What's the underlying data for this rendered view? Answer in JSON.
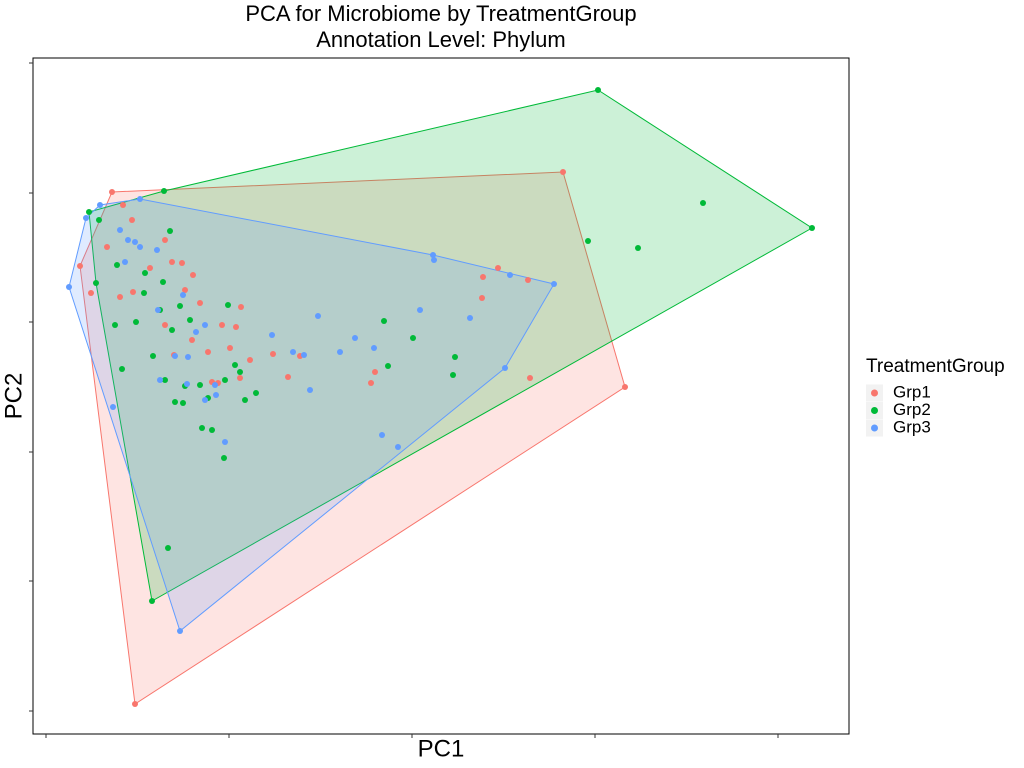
{
  "chart_data": {
    "type": "scatter",
    "title": "PCA for Microbiome by TreatmentGroup",
    "subtitle": "Annotation Level: Phylum",
    "x_label": "PC1",
    "y_label": "PC2",
    "legend_title": "TreatmentGroup",
    "xlim": [
      -13,
      803
    ],
    "xticks": [
      0,
      183,
      366,
      549,
      732
    ],
    "ylim": [
      -23,
      653
    ],
    "yticks": [
      0,
      130,
      259,
      389,
      518,
      648
    ],
    "hull": true,
    "series": [
      {
        "name": "Grp1",
        "color": "#F8766D",
        "x": [
          66,
          517,
          579,
          484,
          89,
          34,
          45,
          77,
          61,
          74,
          86,
          104,
          119,
          126,
          136,
          147,
          139,
          154,
          162,
          176,
          190,
          195,
          172,
          184,
          204,
          227,
          242,
          254,
          325,
          329,
          436,
          437,
          452,
          482,
          87,
          119,
          166,
          194,
          146,
          128
        ],
        "values": [
          519,
          539,
          324,
          333,
          7,
          445,
          418,
          506,
          464,
          414,
          491,
          443,
          471,
          449,
          448,
          436,
          421,
          408,
          359,
          386,
          384,
          404,
          328,
          363,
          351,
          357,
          334,
          355,
          328,
          339,
          413,
          434,
          443,
          431,
          419,
          386,
          329,
          333,
          371,
          356
        ]
      },
      {
        "name": "Grp2",
        "color": "#00BA38",
        "x": [
          118,
          552,
          766,
          657,
          542,
          592,
          106,
          122,
          43,
          53,
          50,
          124,
          69,
          76,
          90,
          98,
          107,
          114,
          117,
          126,
          134,
          119,
          129,
          137,
          139,
          154,
          162,
          156,
          166,
          178,
          179,
          194,
          199,
          210,
          182,
          189,
          338,
          342,
          367,
          409,
          407,
          71,
          99,
          144
        ],
        "values": [
          520,
          621,
          483,
          508,
          470,
          463,
          110,
          163,
          499,
          491,
          428,
          480,
          386,
          342,
          389,
          418,
          355,
          401,
          429,
          381,
          405,
          331,
          309,
          308,
          325,
          326,
          313,
          283,
          281,
          253,
          331,
          339,
          311,
          318,
          406,
          346,
          390,
          345,
          373,
          354,
          336,
          446,
          438,
          391
        ]
      },
      {
        "name": "Grp3",
        "color": "#619CFF",
        "x": [
          23,
          40,
          54,
          94,
          508,
          459,
          134,
          67,
          387,
          388,
          424,
          464,
          374,
          74,
          82,
          79,
          94,
          111,
          112,
          137,
          142,
          150,
          159,
          169,
          179,
          226,
          247,
          258,
          264,
          272,
          294,
          309,
          328,
          336,
          352,
          170,
          141,
          129,
          114,
          89,
          159
        ],
        "values": [
          424,
          493,
          506,
          512,
          427,
          343,
          80,
          304,
          456,
          451,
          393,
          436,
          401,
          481,
          471,
          449,
          464,
          461,
          401,
          416,
          354,
          379,
          386,
          326,
          269,
          376,
          359,
          356,
          321,
          395,
          359,
          373,
          363,
          276,
          264,
          316,
          327,
          355,
          331,
          469,
          311
        ]
      }
    ]
  }
}
